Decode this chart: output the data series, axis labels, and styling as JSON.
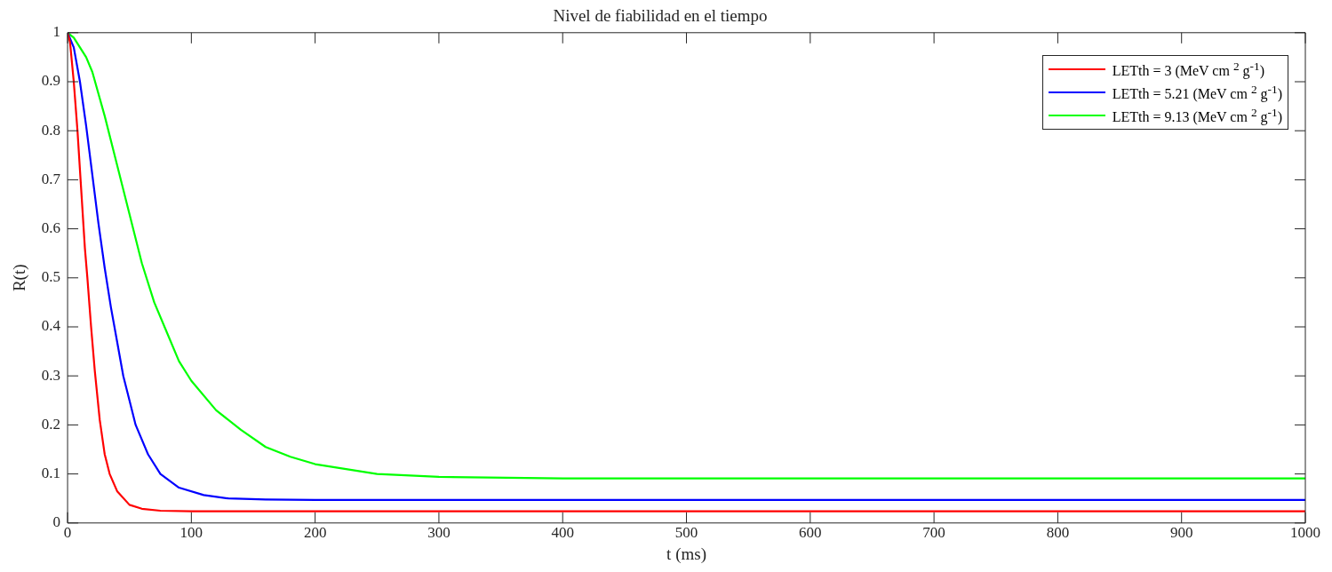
{
  "chart_data": {
    "type": "line",
    "title": "Nivel de fiabilidad en el tiempo",
    "xlabel": "t (ms)",
    "ylabel": "R(t)",
    "xlim": [
      0,
      1000
    ],
    "xticks": [
      0,
      100,
      200,
      300,
      400,
      500,
      600,
      700,
      800,
      900,
      1000
    ],
    "ylim": [
      0,
      1
    ],
    "yticks": [
      0,
      0.1,
      0.2,
      0.3,
      0.4,
      0.5,
      0.6,
      0.7,
      0.8,
      0.9,
      1
    ],
    "grid": false,
    "legend": "top right",
    "marker": "none",
    "line_style": "solid",
    "series": [
      {
        "name": "LETth = 3 (MeV cm $^{2}$ g$^{-1}$)",
        "color": "#ff0000",
        "x": [
          0,
          2,
          5,
          8,
          11,
          14,
          16,
          19,
          22,
          26,
          30,
          34,
          40,
          50,
          60,
          75,
          100,
          1000
        ],
        "values": [
          1,
          0.98,
          0.9,
          0.8,
          0.68,
          0.56,
          0.5,
          0.4,
          0.31,
          0.21,
          0.14,
          0.1,
          0.065,
          0.037,
          0.029,
          0.025,
          0.024,
          0.024
        ]
      },
      {
        "name": "LETth = 5.21 (MeV cm $^{2}$ g$^{-1}$)",
        "color": "#0000ff",
        "x": [
          0,
          5,
          10,
          15,
          20,
          25,
          30,
          35,
          40,
          45,
          50,
          55,
          65,
          75,
          90,
          110,
          130,
          160,
          200,
          1000
        ],
        "values": [
          1,
          0.97,
          0.9,
          0.81,
          0.71,
          0.61,
          0.52,
          0.44,
          0.37,
          0.3,
          0.25,
          0.2,
          0.14,
          0.1,
          0.072,
          0.057,
          0.05,
          0.048,
          0.047,
          0.047
        ]
      },
      {
        "name": "LETth = 9.13 (MeV cm $^{2}$ g$^{-1}$)",
        "color": "#00ff00",
        "x": [
          0,
          5,
          10,
          15,
          20,
          30,
          40,
          50,
          60,
          70,
          80,
          90,
          100,
          120,
          140,
          160,
          180,
          200,
          250,
          300,
          400,
          1000
        ],
        "values": [
          1,
          0.99,
          0.97,
          0.95,
          0.92,
          0.83,
          0.73,
          0.63,
          0.53,
          0.45,
          0.39,
          0.33,
          0.29,
          0.23,
          0.19,
          0.155,
          0.135,
          0.12,
          0.1,
          0.094,
          0.091,
          0.091
        ]
      }
    ]
  }
}
